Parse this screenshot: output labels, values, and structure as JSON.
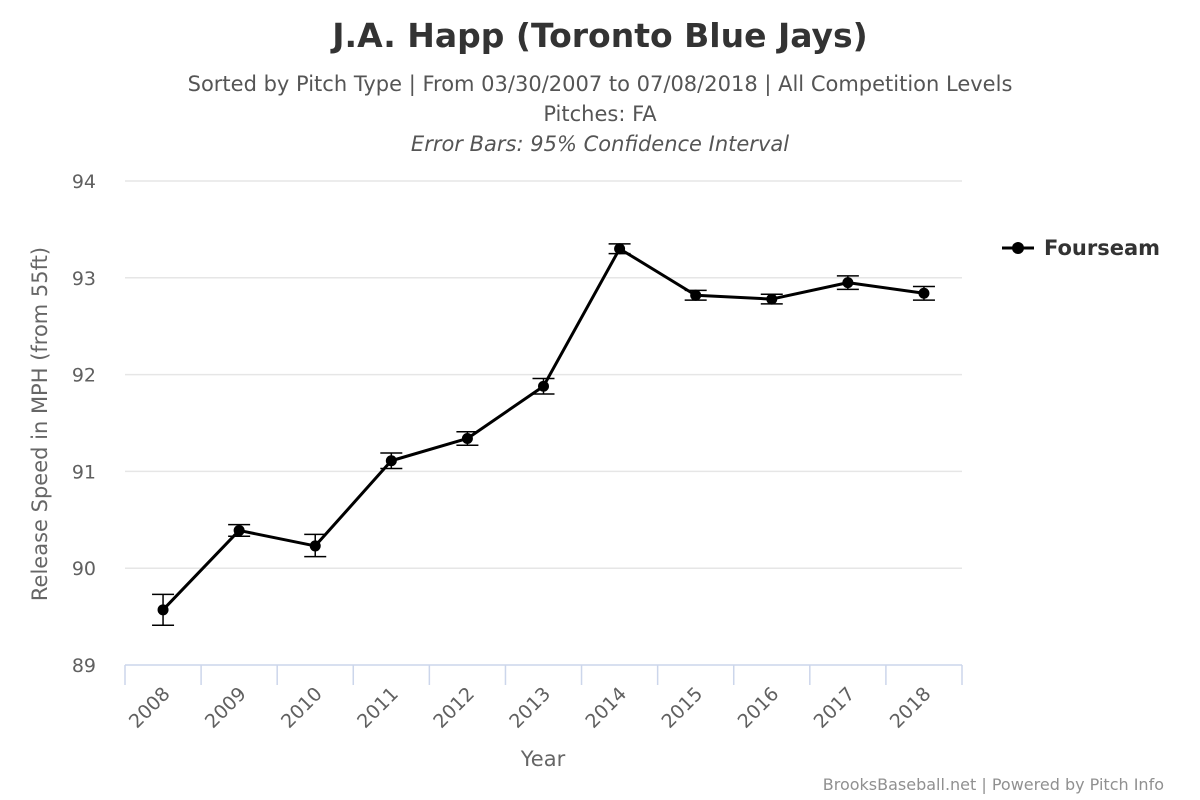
{
  "chart_data": {
    "type": "line",
    "title": "J.A. Happ (Toronto Blue Jays)",
    "subtitle_lines": [
      "Sorted by Pitch Type | From 03/30/2007 to 07/08/2018 | All Competition Levels",
      "Pitches: FA"
    ],
    "subtitle_note": "Error Bars: 95% Confidence Interval",
    "xlabel": "Year",
    "ylabel": "Release Speed in MPH (from 55ft)",
    "categories": [
      "2008",
      "2009",
      "2010",
      "2011",
      "2012",
      "2013",
      "2014",
      "2015",
      "2016",
      "2017",
      "2018"
    ],
    "ylim": [
      89,
      94
    ],
    "yticks": [
      89,
      90,
      91,
      92,
      93,
      94
    ],
    "grid": true,
    "legend_position": "right",
    "series": [
      {
        "name": "Fourseam",
        "color": "#000000",
        "values": [
          89.57,
          90.39,
          90.23,
          91.11,
          91.34,
          91.88,
          93.3,
          92.82,
          92.78,
          92.95,
          92.84
        ],
        "error_low": [
          89.41,
          90.33,
          90.12,
          91.03,
          91.27,
          91.8,
          93.25,
          92.77,
          92.73,
          92.88,
          92.77
        ],
        "error_high": [
          89.73,
          90.45,
          90.35,
          91.19,
          91.41,
          91.96,
          93.35,
          92.87,
          92.83,
          93.02,
          92.91
        ]
      }
    ]
  },
  "credits": "BrooksBaseball.net | Powered by Pitch Info",
  "colors": {
    "grid": "#e6e6e6",
    "axis": "#ccd6eb",
    "series": "#000000"
  }
}
